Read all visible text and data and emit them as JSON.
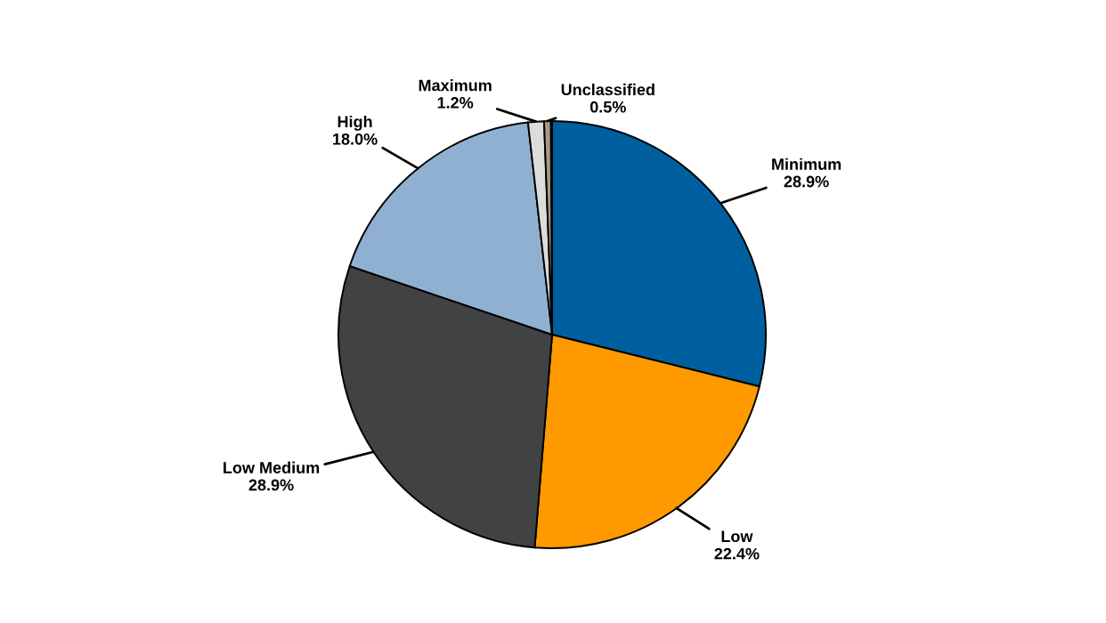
{
  "chart_data": {
    "type": "pie",
    "categories": [
      "Minimum",
      "Low",
      "Low Medium",
      "High",
      "Maximum",
      "Unclassified"
    ],
    "values": [
      28.9,
      22.4,
      28.9,
      18.0,
      1.2,
      0.5
    ],
    "colors": [
      "#005f9e",
      "#ff9900",
      "#404244",
      "#90b0d2",
      "#dcdcdc",
      "#a89a84"
    ],
    "value_labels": [
      "28.9%",
      "22.4%",
      "28.9%",
      "18.0%",
      "1.2%",
      "0.5%"
    ],
    "legend": false
  }
}
